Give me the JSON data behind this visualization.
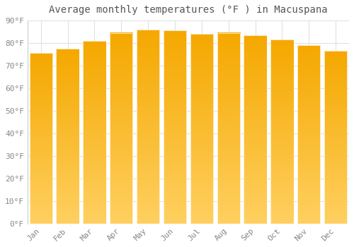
{
  "title": "Average monthly temperatures (°F ) in Macuspana",
  "months": [
    "Jan",
    "Feb",
    "Mar",
    "Apr",
    "May",
    "Jun",
    "Jul",
    "Aug",
    "Sep",
    "Oct",
    "Nov",
    "Dec"
  ],
  "values": [
    75.5,
    77.5,
    81.0,
    84.5,
    86.0,
    85.5,
    84.0,
    84.5,
    83.5,
    81.5,
    79.0,
    76.5
  ],
  "bar_color_top": "#F5A800",
  "bar_color_bottom": "#FFD060",
  "bar_edge_color": "#FFFFFF",
  "background_color": "#FFFFFF",
  "plot_bg_color": "#FFFFFF",
  "grid_color": "#E0E0E0",
  "text_color": "#888888",
  "ylim": [
    0,
    90
  ],
  "yticks": [
    0,
    10,
    20,
    30,
    40,
    50,
    60,
    70,
    80,
    90
  ],
  "title_fontsize": 10,
  "tick_fontsize": 8,
  "bar_width": 0.85
}
